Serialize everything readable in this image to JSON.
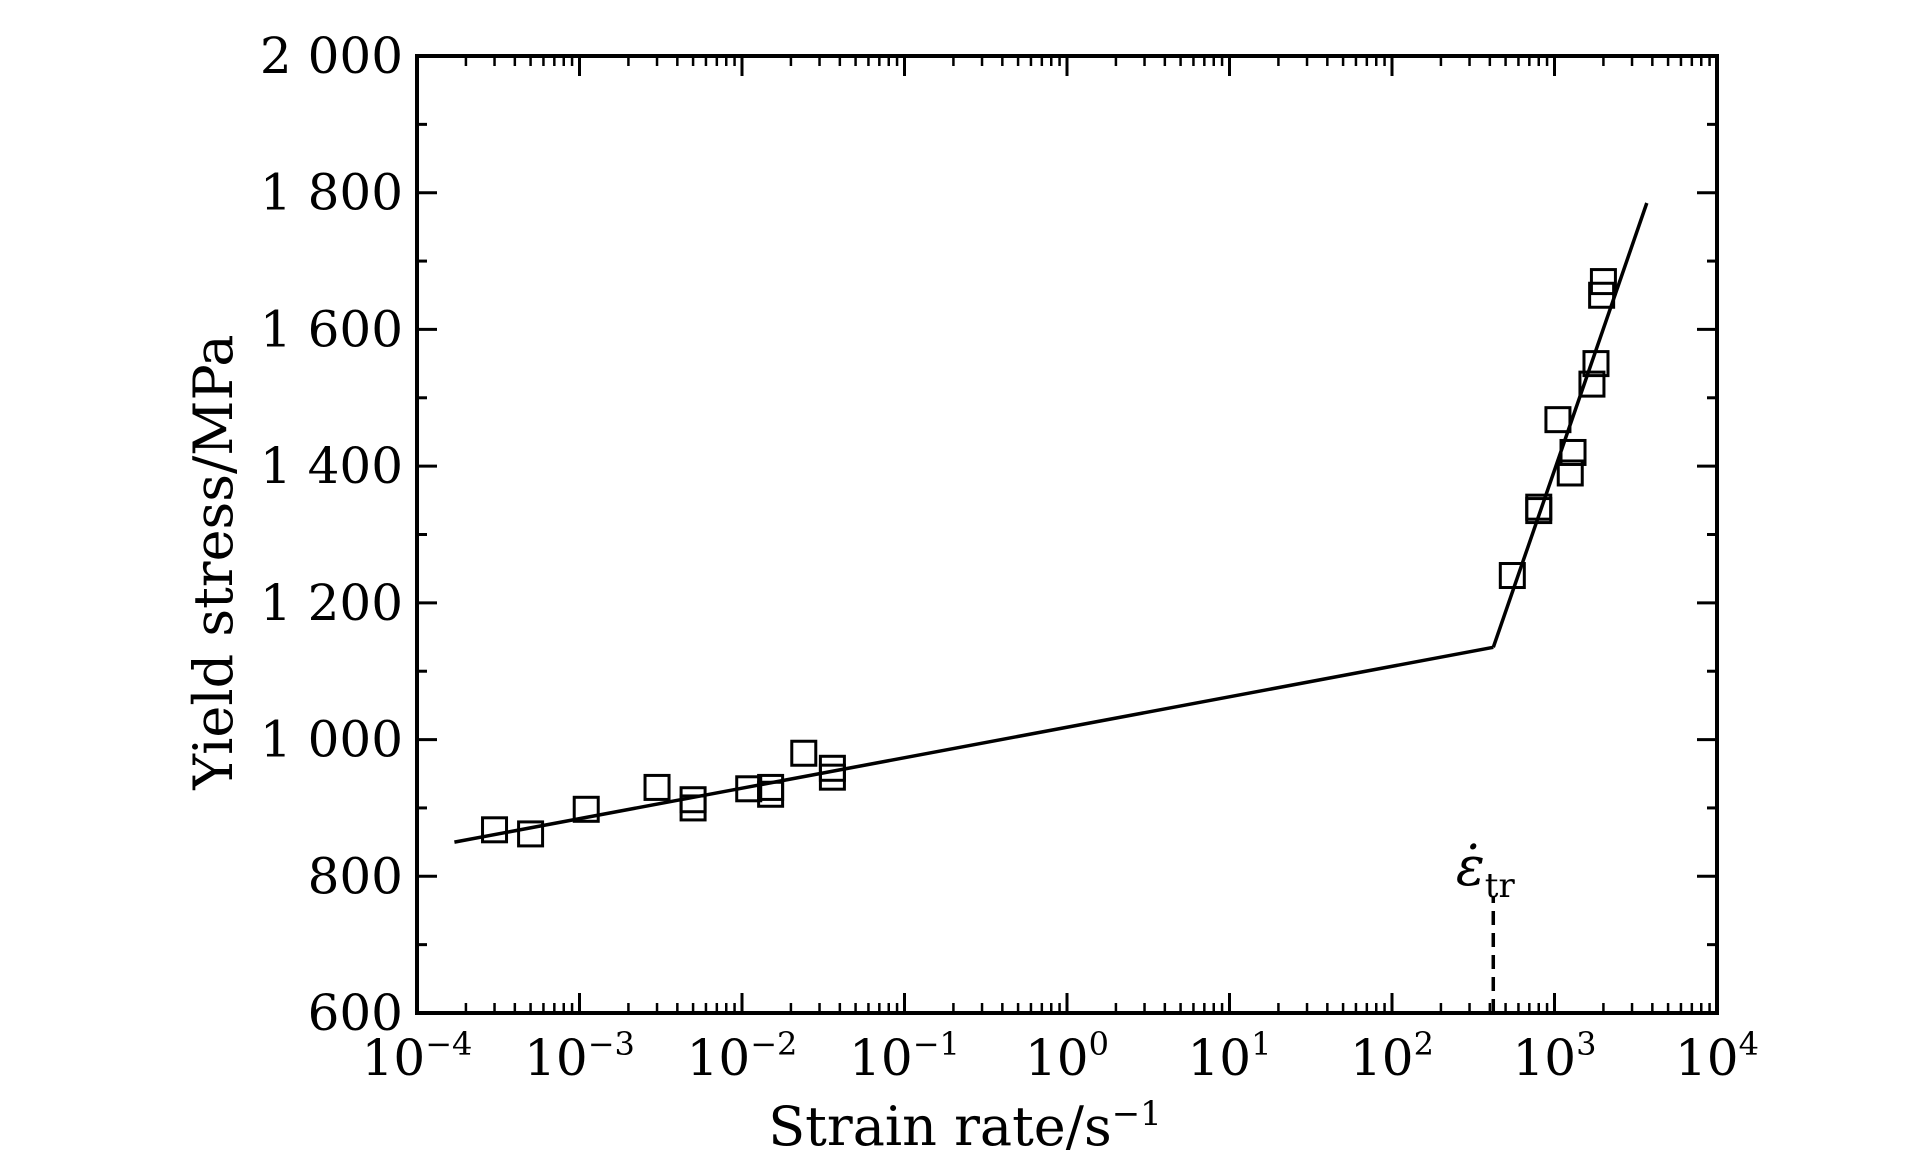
{
  "chart_data": {
    "type": "scatter",
    "xlabel": "Strain rate/s",
    "xlabel_exponent": "−1",
    "ylabel": "Yield stress/MPa",
    "x_scale": "log",
    "xlim": [
      0.0001,
      10000
    ],
    "ylim": [
      600,
      2000
    ],
    "x_ticks": [
      {
        "value": 0.0001,
        "base": "10",
        "exp": "−4"
      },
      {
        "value": 0.001,
        "base": "10",
        "exp": "−3"
      },
      {
        "value": 0.01,
        "base": "10",
        "exp": "−2"
      },
      {
        "value": 0.1,
        "base": "10",
        "exp": "−1"
      },
      {
        "value": 1,
        "base": "10",
        "exp": "0"
      },
      {
        "value": 10,
        "base": "10",
        "exp": "1"
      },
      {
        "value": 100,
        "base": "10",
        "exp": "2"
      },
      {
        "value": 1000,
        "base": "10",
        "exp": "3"
      },
      {
        "value": 10000,
        "base": "10",
        "exp": "4"
      }
    ],
    "y_ticks": [
      {
        "value": 600,
        "label": "600"
      },
      {
        "value": 800,
        "label": "800"
      },
      {
        "value": 1000,
        "label": "1 000"
      },
      {
        "value": 1200,
        "label": "1 200"
      },
      {
        "value": 1400,
        "label": "1 400"
      },
      {
        "value": 1600,
        "label": "1 600"
      },
      {
        "value": 1800,
        "label": "1 800"
      },
      {
        "value": 2000,
        "label": "2 000"
      }
    ],
    "y_minor_step": 100,
    "grid": false,
    "series": [
      {
        "marker": "open-square",
        "color": "#000000",
        "points": [
          {
            "x": 0.0003,
            "y": 868
          },
          {
            "x": 0.0005,
            "y": 862
          },
          {
            "x": 0.0011,
            "y": 898
          },
          {
            "x": 0.003,
            "y": 930
          },
          {
            "x": 0.005,
            "y": 900
          },
          {
            "x": 0.005,
            "y": 912
          },
          {
            "x": 0.011,
            "y": 928
          },
          {
            "x": 0.015,
            "y": 920
          },
          {
            "x": 0.015,
            "y": 930
          },
          {
            "x": 0.024,
            "y": 980
          },
          {
            "x": 0.036,
            "y": 945
          },
          {
            "x": 0.036,
            "y": 958
          },
          {
            "x": 550,
            "y": 1240
          },
          {
            "x": 800,
            "y": 1335
          },
          {
            "x": 800,
            "y": 1340
          },
          {
            "x": 1050,
            "y": 1468
          },
          {
            "x": 1250,
            "y": 1390
          },
          {
            "x": 1300,
            "y": 1420
          },
          {
            "x": 1700,
            "y": 1520
          },
          {
            "x": 1800,
            "y": 1550
          },
          {
            "x": 1950,
            "y": 1650
          },
          {
            "x": 2000,
            "y": 1670
          }
        ]
      }
    ],
    "fit_lines": [
      {
        "points": [
          {
            "x": 0.00017,
            "y": 850
          },
          {
            "x": 420,
            "y": 1135
          }
        ]
      },
      {
        "points": [
          {
            "x": 420,
            "y": 1135
          },
          {
            "x": 3700,
            "y": 1785
          }
        ]
      }
    ],
    "annotation": {
      "symbol": "ε̇",
      "subscript": "tr",
      "x": 420,
      "line_y": [
        600,
        770
      ]
    }
  }
}
